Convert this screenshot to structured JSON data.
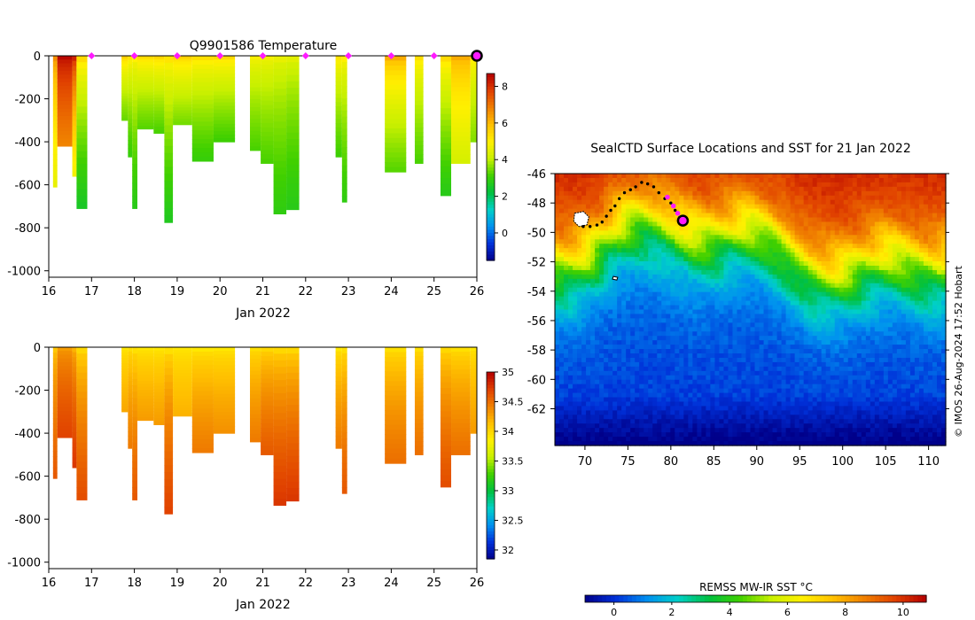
{
  "colors": {
    "ramp": [
      "#00008a",
      "#0030d8",
      "#0090f0",
      "#00d0c8",
      "#00c040",
      "#40d000",
      "#c8f000",
      "#fff000",
      "#ffc000",
      "#f08000",
      "#e04000",
      "#b40000"
    ]
  },
  "chart_data": [
    {
      "id": "temperature",
      "type": "heatmap",
      "title": "Q9901586  Temperature",
      "xlabel": "Jan 2022",
      "ylabel": "",
      "xlim": [
        16,
        26
      ],
      "ylim": [
        -1030,
        0
      ],
      "xticks": [
        16,
        17,
        18,
        19,
        20,
        21,
        22,
        23,
        24,
        25,
        26
      ],
      "yticks": [
        0,
        -200,
        -400,
        -600,
        -800,
        -1000
      ],
      "colorbar": {
        "min": -1.5,
        "max": 8.7,
        "ticks": [
          0,
          2,
          4,
          6,
          8
        ]
      },
      "surface_markers": [
        17,
        18,
        19,
        20,
        21,
        22,
        23,
        24,
        25
      ],
      "profiles": [
        {
          "x0": 16.1,
          "x1": 16.2,
          "depth": 610,
          "top": 6.6,
          "bottom": 4.6
        },
        {
          "x0": 16.2,
          "x1": 16.55,
          "depth": 420,
          "top": 8.6,
          "bottom": 6.8
        },
        {
          "x0": 16.55,
          "x1": 16.65,
          "depth": 560,
          "top": 8.2,
          "bottom": 4.8
        },
        {
          "x0": 16.65,
          "x1": 16.9,
          "depth": 710,
          "top": 5.4,
          "bottom": 2.6
        },
        {
          "x0": 17.7,
          "x1": 17.85,
          "depth": 300,
          "top": 5.6,
          "bottom": 3.4
        },
        {
          "x0": 17.85,
          "x1": 17.95,
          "depth": 470,
          "top": 5.2,
          "bottom": 3.0
        },
        {
          "x0": 17.95,
          "x1": 18.07,
          "depth": 710,
          "top": 5.0,
          "bottom": 2.8
        },
        {
          "x0": 18.07,
          "x1": 18.45,
          "depth": 340,
          "top": 5.4,
          "bottom": 3.3
        },
        {
          "x0": 18.45,
          "x1": 18.7,
          "depth": 360,
          "top": 5.5,
          "bottom": 3.2
        },
        {
          "x0": 18.7,
          "x1": 18.9,
          "depth": 775,
          "top": 5.2,
          "bottom": 2.7
        },
        {
          "x0": 18.9,
          "x1": 19.35,
          "depth": 320,
          "top": 5.6,
          "bottom": 3.5
        },
        {
          "x0": 19.35,
          "x1": 19.85,
          "depth": 490,
          "top": 5.3,
          "bottom": 3.0
        },
        {
          "x0": 19.85,
          "x1": 20.35,
          "depth": 400,
          "top": 5.4,
          "bottom": 3.1
        },
        {
          "x0": 20.7,
          "x1": 20.95,
          "depth": 440,
          "top": 4.9,
          "bottom": 3.2
        },
        {
          "x0": 20.95,
          "x1": 21.25,
          "depth": 500,
          "top": 4.8,
          "bottom": 3.2
        },
        {
          "x0": 21.25,
          "x1": 21.55,
          "depth": 735,
          "top": 4.6,
          "bottom": 2.9
        },
        {
          "x0": 21.55,
          "x1": 21.85,
          "depth": 715,
          "top": 4.5,
          "bottom": 2.8
        },
        {
          "x0": 22.7,
          "x1": 22.85,
          "depth": 470,
          "top": 5.2,
          "bottom": 3.1
        },
        {
          "x0": 22.85,
          "x1": 22.97,
          "depth": 680,
          "top": 5.0,
          "bottom": 2.9
        },
        {
          "x0": 23.85,
          "x1": 24.35,
          "depth": 540,
          "top": 6.2,
          "bottom": 3.3
        },
        {
          "x0": 24.55,
          "x1": 24.75,
          "depth": 500,
          "top": 5.3,
          "bottom": 3.2
        },
        {
          "x0": 25.15,
          "x1": 25.4,
          "depth": 650,
          "top": 5.4,
          "bottom": 2.8
        },
        {
          "x0": 25.4,
          "x1": 25.85,
          "depth": 500,
          "top": 6.2,
          "bottom": 4.3
        },
        {
          "x0": 25.85,
          "x1": 26.0,
          "depth": 400,
          "top": 5.2,
          "bottom": 3.6
        }
      ]
    },
    {
      "id": "salinity",
      "type": "heatmap",
      "title": "",
      "xlabel": "Jan 2022",
      "ylabel": "",
      "xlim": [
        16,
        26
      ],
      "ylim": [
        -1030,
        0
      ],
      "xticks": [
        16,
        17,
        18,
        19,
        20,
        21,
        22,
        23,
        24,
        25,
        26
      ],
      "yticks": [
        0,
        -200,
        -400,
        -600,
        -800,
        -1000
      ],
      "colorbar": {
        "min": 31.85,
        "max": 35.0,
        "ticks": [
          32,
          32.5,
          33,
          33.5,
          34,
          34.5,
          35
        ]
      },
      "profiles": [
        {
          "x0": 16.1,
          "x1": 16.2,
          "depth": 610,
          "top": 34.1,
          "bottom": 34.6
        },
        {
          "x0": 16.2,
          "x1": 16.55,
          "depth": 420,
          "top": 34.3,
          "bottom": 34.7
        },
        {
          "x0": 16.55,
          "x1": 16.65,
          "depth": 560,
          "top": 34.2,
          "bottom": 34.75
        },
        {
          "x0": 16.65,
          "x1": 16.9,
          "depth": 710,
          "top": 34.0,
          "bottom": 34.65
        },
        {
          "x0": 17.7,
          "x1": 17.85,
          "depth": 300,
          "top": 33.9,
          "bottom": 34.25
        },
        {
          "x0": 17.85,
          "x1": 17.95,
          "depth": 470,
          "top": 33.95,
          "bottom": 34.45
        },
        {
          "x0": 17.95,
          "x1": 18.07,
          "depth": 710,
          "top": 33.95,
          "bottom": 34.6
        },
        {
          "x0": 18.07,
          "x1": 18.45,
          "depth": 340,
          "top": 33.9,
          "bottom": 34.3
        },
        {
          "x0": 18.45,
          "x1": 18.7,
          "depth": 360,
          "top": 33.9,
          "bottom": 34.3
        },
        {
          "x0": 18.7,
          "x1": 18.9,
          "depth": 775,
          "top": 33.95,
          "bottom": 34.7
        },
        {
          "x0": 18.9,
          "x1": 19.35,
          "depth": 320,
          "top": 33.9,
          "bottom": 34.2
        },
        {
          "x0": 19.35,
          "x1": 19.85,
          "depth": 490,
          "top": 33.9,
          "bottom": 34.45
        },
        {
          "x0": 19.85,
          "x1": 20.35,
          "depth": 400,
          "top": 33.9,
          "bottom": 34.35
        },
        {
          "x0": 20.7,
          "x1": 20.95,
          "depth": 440,
          "top": 33.95,
          "bottom": 34.45
        },
        {
          "x0": 20.95,
          "x1": 21.25,
          "depth": 500,
          "top": 34.0,
          "bottom": 34.6
        },
        {
          "x0": 21.25,
          "x1": 21.55,
          "depth": 735,
          "top": 34.0,
          "bottom": 34.75
        },
        {
          "x0": 21.55,
          "x1": 21.85,
          "depth": 715,
          "top": 34.0,
          "bottom": 34.75
        },
        {
          "x0": 22.7,
          "x1": 22.85,
          "depth": 470,
          "top": 33.9,
          "bottom": 34.45
        },
        {
          "x0": 22.85,
          "x1": 22.97,
          "depth": 680,
          "top": 33.95,
          "bottom": 34.6
        },
        {
          "x0": 23.85,
          "x1": 24.35,
          "depth": 540,
          "top": 33.95,
          "bottom": 34.5
        },
        {
          "x0": 24.55,
          "x1": 24.75,
          "depth": 500,
          "top": 33.95,
          "bottom": 34.5
        },
        {
          "x0": 25.15,
          "x1": 25.4,
          "depth": 650,
          "top": 34.0,
          "bottom": 34.65
        },
        {
          "x0": 25.4,
          "x1": 25.85,
          "depth": 500,
          "top": 33.95,
          "bottom": 34.5
        },
        {
          "x0": 25.85,
          "x1": 26.0,
          "depth": 400,
          "top": 33.9,
          "bottom": 34.3
        }
      ]
    },
    {
      "id": "sst-map",
      "type": "heatmap",
      "title": "SealCTD Surface Locations and SST for 21 Jan 2022",
      "xlabel": "",
      "ylabel": "",
      "xlim": [
        66.5,
        112
      ],
      "ylim": [
        -64.5,
        -46
      ],
      "xticks": [
        70,
        75,
        80,
        85,
        90,
        95,
        100,
        105,
        110
      ],
      "yticks": [
        -46,
        -48,
        -50,
        -52,
        -54,
        -56,
        -58,
        -60,
        -62
      ],
      "colorbar": {
        "label": "REMSS MW-IR SST °C",
        "min": -1,
        "max": 10.8,
        "ticks": [
          0,
          2,
          4,
          6,
          8,
          10
        ]
      },
      "track": [
        [
          69.8,
          -49.6
        ],
        [
          70.6,
          -49.6
        ],
        [
          71.4,
          -49.5
        ],
        [
          72.0,
          -49.3
        ],
        [
          72.5,
          -48.9
        ],
        [
          73.0,
          -48.5
        ],
        [
          73.5,
          -48.2
        ],
        [
          74.0,
          -47.7
        ],
        [
          74.6,
          -47.3
        ],
        [
          75.3,
          -47.1
        ],
        [
          75.9,
          -46.9
        ],
        [
          76.6,
          -46.6
        ],
        [
          77.3,
          -46.7
        ],
        [
          78.0,
          -46.9
        ],
        [
          78.6,
          -47.3
        ],
        [
          79.3,
          -47.7
        ],
        [
          80.0,
          -48.0
        ],
        [
          80.5,
          -48.5
        ],
        [
          81.0,
          -49.0
        ],
        [
          81.4,
          -49.2
        ]
      ],
      "track_recent": [
        [
          79.6,
          -47.6
        ],
        [
          80.3,
          -48.2
        ],
        [
          80.8,
          -48.7
        ]
      ],
      "current_location": [
        81.4,
        -49.2
      ]
    }
  ],
  "timestamp_note": "© IMOS 26-Aug-2024 17:52 Hobart"
}
